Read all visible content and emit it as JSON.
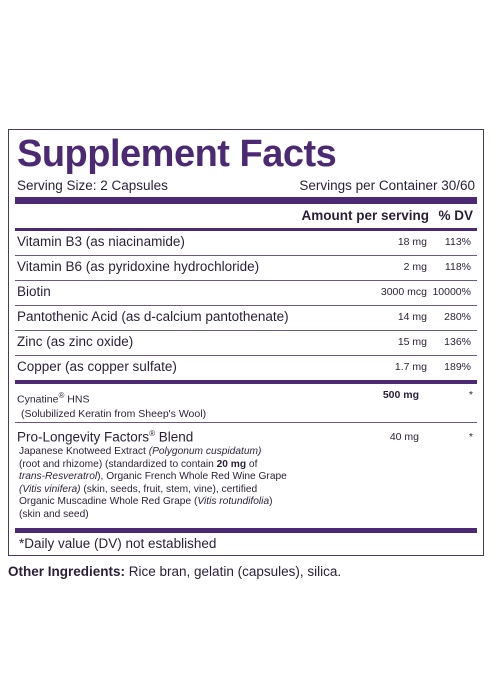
{
  "title": "Supplement Facts",
  "serving_size": "Serving Size: 2 Capsules",
  "servings_per_container": "Servings per Container 30/60",
  "header": {
    "amount": "Amount per serving",
    "dv": "% DV"
  },
  "rows": [
    {
      "name": "Vitamin B3 (as niacinamide)",
      "amount": "18 mg",
      "dv": "113%"
    },
    {
      "name": "Vitamin B6 (as pyridoxine hydrochloride)",
      "amount": "2 mg",
      "dv": "118%"
    },
    {
      "name": "Biotin",
      "amount": "3000 mcg",
      "dv": "10000%"
    },
    {
      "name": "Pantothenic Acid (as d-calcium pantothenate)",
      "amount": "14 mg",
      "dv": "280%"
    },
    {
      "name": "Zinc (as zinc oxide)",
      "amount": "15 mg",
      "dv": "136%"
    },
    {
      "name": "Copper (as copper sulfate)",
      "amount": "1.7 mg",
      "dv": "189%"
    }
  ],
  "cynatine": {
    "name": "Cynatine",
    "reg": "®",
    "suffix": " HNS",
    "sub": "(Solubilized Keratin from Sheep's Wool)",
    "amount": "500 mg",
    "dv": "*"
  },
  "blend": {
    "name": "Pro-Longevity Factors",
    "reg": "®",
    "suffix": " Blend",
    "amount": "40 mg",
    "dv": "*",
    "d1": "Japanese Knotweed Extract ",
    "d1i": "(Polygonum cuspidatum)",
    "d2": "(root and rhizome) (standardized to contain ",
    "d2b": "20 mg",
    "d2e": " of",
    "d3i": "trans-Resveratrol",
    "d3": "), Organic French Whole Red Wine Grape",
    "d4i": "(Vitis vinifera)",
    "d4": " (skin, seeds, fruit, stem, vine), certified",
    "d5": "Organic Muscadine Whole Red Grape (",
    "d5i": "Vitis rotundifolia",
    "d5e": ")",
    "d6": "(skin and seed)"
  },
  "note": "*Daily value (DV) not established",
  "other_label": "Other Ingredients:",
  "other_text": " Rice bran, gelatin (capsules), silica."
}
